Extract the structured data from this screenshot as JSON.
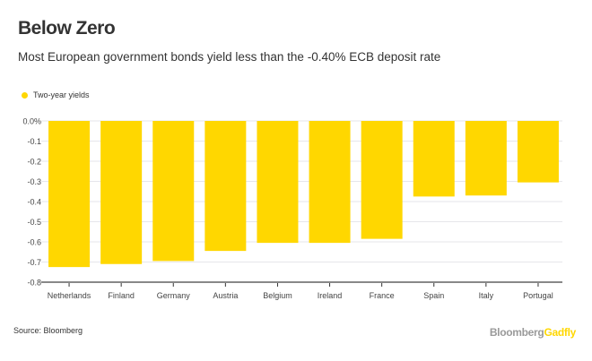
{
  "header": {
    "title": "Below Zero",
    "subtitle": "Most European government bonds yield less than the -0.40% ECB deposit rate"
  },
  "legend": {
    "label": "Two-year yields",
    "color": "#FFD700"
  },
  "footer": {
    "source": "Source: Bloomberg",
    "brand_part1": "Bloomberg",
    "brand_part2": "Gadfly",
    "brand_color1": "#9a9a9a",
    "brand_color2": "#FFD700"
  },
  "chart_data": {
    "type": "bar",
    "title": "Below Zero",
    "subtitle": "Most European government bonds yield less than the -0.40% ECB deposit rate",
    "xlabel": "",
    "ylabel": "",
    "categories": [
      "Netherlands",
      "Finland",
      "Germany",
      "Austria",
      "Belgium",
      "Ireland",
      "France",
      "Spain",
      "Italy",
      "Portugal"
    ],
    "series": [
      {
        "name": "Two-year yields",
        "color": "#FFD700",
        "values": [
          -0.725,
          -0.71,
          -0.695,
          -0.645,
          -0.605,
          -0.605,
          -0.585,
          -0.375,
          -0.37,
          -0.305
        ]
      }
    ],
    "ylim": [
      -0.8,
      0.0
    ],
    "yticks": [
      0.0,
      -0.1,
      -0.2,
      -0.3,
      -0.4,
      -0.5,
      -0.6,
      -0.7,
      -0.8
    ],
    "ytick_labels": [
      "0.0%",
      "-0.1",
      "-0.2",
      "-0.3",
      "-0.4",
      "-0.5",
      "-0.6",
      "-0.7",
      "-0.8"
    ],
    "grid": true,
    "legend_position": "top-left"
  }
}
